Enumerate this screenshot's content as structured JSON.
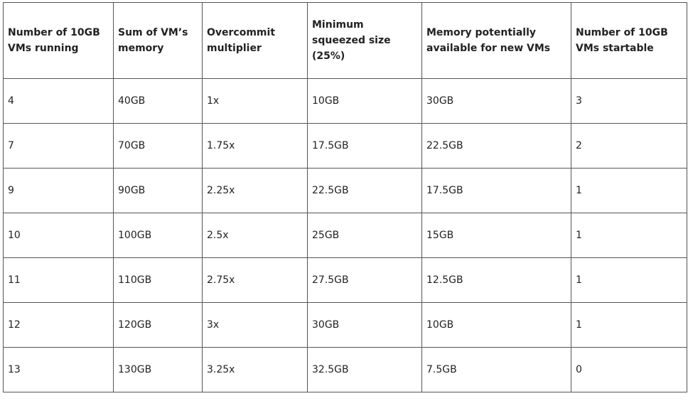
{
  "table": {
    "header": [
      [
        "Number of 10GB",
        "VMs running"
      ],
      [
        "Sum of VM’s",
        "memory"
      ],
      [
        "Overcommit",
        "multiplier"
      ],
      [
        "Minimum",
        "squeezed size",
        "(25%)"
      ],
      [
        "Memory potentially",
        "available for new VMs"
      ],
      [
        "Number of 10GB",
        "VMs startable"
      ]
    ],
    "rows": [
      [
        "4",
        "40GB",
        "1x",
        "10GB",
        "30GB",
        "3"
      ],
      [
        "7",
        "70GB",
        "1.75x",
        "17.5GB",
        "22.5GB",
        "2"
      ],
      [
        "9",
        "90GB",
        "2.25x",
        "22.5GB",
        "17.5GB",
        "1"
      ],
      [
        "10",
        "100GB",
        "2.5x",
        "25GB",
        "15GB",
        "1"
      ],
      [
        "11",
        "110GB",
        "2.75x",
        "27.5GB",
        "12.5GB",
        "1"
      ],
      [
        "12",
        "120GB",
        "3x",
        "30GB",
        "10GB",
        "1"
      ],
      [
        "13",
        "130GB",
        "3.25x",
        "32.5GB",
        "7.5GB",
        "0"
      ]
    ]
  }
}
